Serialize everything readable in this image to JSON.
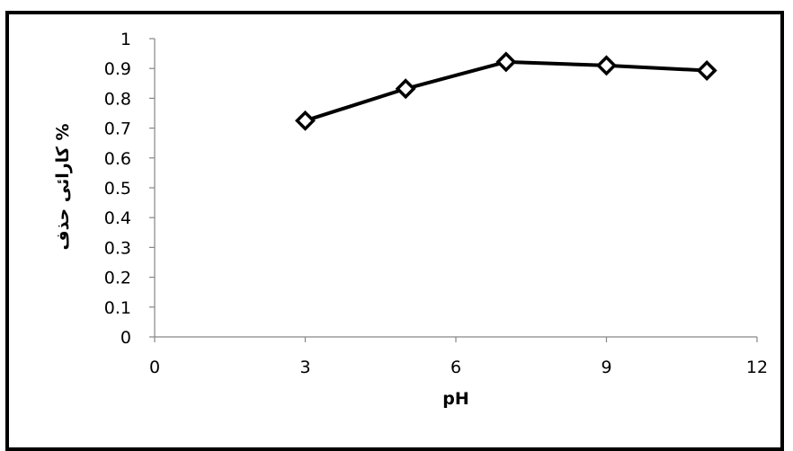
{
  "chart_data": {
    "type": "scatter",
    "title": "",
    "xlabel": "pH",
    "ylabel": "% کارائی حذف",
    "xlim": [
      0,
      12
    ],
    "ylim": [
      0,
      1
    ],
    "xticks": [
      "0",
      "3",
      "6",
      "9",
      "12"
    ],
    "yticks": [
      "0",
      "0.1",
      "0.2",
      "0.3",
      "0.4",
      "0.5",
      "0.6",
      "0.7",
      "0.8",
      "0.9",
      "1"
    ],
    "grid": false,
    "legend": "none",
    "series": [
      {
        "x": [
          3,
          5,
          7,
          9,
          11
        ],
        "y": [
          0.725,
          0.832,
          0.922,
          0.91,
          0.893
        ],
        "line_color": "#000000",
        "marker": "diamond-open"
      }
    ]
  }
}
